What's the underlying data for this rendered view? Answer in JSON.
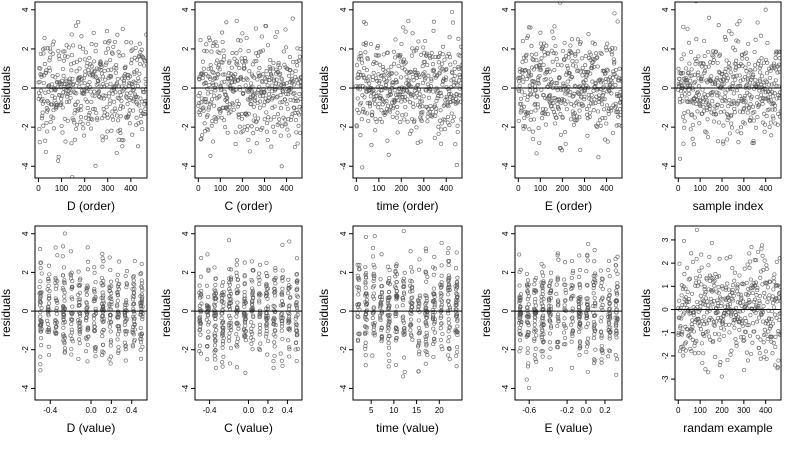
{
  "figure": {
    "colors": {
      "point": "#555555",
      "zero_line": "#000000",
      "frame": "#000000",
      "background": "#ffffff"
    }
  },
  "chart_data": [
    {
      "type": "scatter",
      "xlabel": "D (order)",
      "ylabel": "residuals",
      "xlim": [
        -15,
        470
      ],
      "ylim": [
        -4.6,
        4.4
      ],
      "xticks": [
        0,
        100,
        200,
        300,
        400
      ],
      "xtick_labels": [
        "0",
        "100",
        "200",
        "300",
        "400"
      ],
      "yticks": [
        -4,
        -2,
        0,
        2,
        4
      ],
      "ytick_labels": [
        "-4",
        "-2",
        "0",
        "2",
        "4"
      ],
      "reference_line_y": 0,
      "point_style": "open-circle",
      "n_points": 470,
      "x_kind": "index"
    },
    {
      "type": "scatter",
      "xlabel": "C (order)",
      "ylabel": "residuals",
      "xlim": [
        -15,
        470
      ],
      "ylim": [
        -4.6,
        4.4
      ],
      "xticks": [
        0,
        100,
        200,
        300,
        400
      ],
      "xtick_labels": [
        "0",
        "100",
        "200",
        "300",
        "400"
      ],
      "yticks": [
        -4,
        -2,
        0,
        2,
        4
      ],
      "ytick_labels": [
        "-4",
        "-2",
        "0",
        "2",
        "4"
      ],
      "reference_line_y": 0,
      "point_style": "open-circle",
      "n_points": 470,
      "x_kind": "index"
    },
    {
      "type": "scatter",
      "xlabel": "time (order)",
      "ylabel": "residuals",
      "xlim": [
        -15,
        470
      ],
      "ylim": [
        -4.6,
        4.4
      ],
      "xticks": [
        0,
        100,
        200,
        300,
        400
      ],
      "xtick_labels": [
        "0",
        "100",
        "200",
        "300",
        "400"
      ],
      "yticks": [
        -4,
        -2,
        0,
        2,
        4
      ],
      "ytick_labels": [
        "-4",
        "-2",
        "0",
        "2",
        "4"
      ],
      "reference_line_y": 0,
      "point_style": "open-circle",
      "n_points": 470,
      "x_kind": "index"
    },
    {
      "type": "scatter",
      "xlabel": "E (order)",
      "ylabel": "residuals",
      "xlim": [
        -15,
        470
      ],
      "ylim": [
        -4.6,
        4.4
      ],
      "xticks": [
        0,
        100,
        200,
        300,
        400
      ],
      "xtick_labels": [
        "0",
        "100",
        "200",
        "300",
        "400"
      ],
      "yticks": [
        -4,
        -2,
        0,
        2,
        4
      ],
      "ytick_labels": [
        "-4",
        "-2",
        "0",
        "2",
        "4"
      ],
      "reference_line_y": 0,
      "point_style": "open-circle",
      "n_points": 470,
      "x_kind": "index"
    },
    {
      "type": "scatter",
      "xlabel": "sample index",
      "ylabel": "residuals",
      "xlim": [
        -15,
        470
      ],
      "ylim": [
        -4.6,
        4.4
      ],
      "xticks": [
        0,
        100,
        200,
        300,
        400
      ],
      "xtick_labels": [
        "0",
        "100",
        "200",
        "300",
        "400"
      ],
      "yticks": [
        -4,
        -2,
        0,
        2,
        4
      ],
      "ytick_labels": [
        "-4",
        "-2",
        "0",
        "2",
        "4"
      ],
      "reference_line_y": 0,
      "point_style": "open-circle",
      "n_points": 470,
      "x_kind": "index"
    },
    {
      "type": "scatter",
      "xlabel": "D (value)",
      "ylabel": "residuals",
      "xlim": [
        -0.55,
        0.55
      ],
      "ylim": [
        -4.6,
        4.4
      ],
      "xticks": [
        -0.4,
        0,
        0.2,
        0.4
      ],
      "xtick_labels": [
        "-0.4",
        "0.0",
        "0.2",
        "0.4"
      ],
      "yticks": [
        -4,
        -2,
        0,
        2,
        4
      ],
      "ytick_labels": [
        "-4",
        "-2",
        "0",
        "2",
        "4"
      ],
      "reference_line_y": 0,
      "point_style": "open-circle",
      "n_points": 470,
      "x_kind": "value"
    },
    {
      "type": "scatter",
      "xlabel": "C (value)",
      "ylabel": "residuals",
      "xlim": [
        -0.55,
        0.55
      ],
      "ylim": [
        -4.6,
        4.4
      ],
      "xticks": [
        -0.4,
        0,
        0.2,
        0.4
      ],
      "xtick_labels": [
        "-0.4",
        "0.0",
        "0.2",
        "0.4"
      ],
      "yticks": [
        -4,
        -2,
        0,
        2,
        4
      ],
      "ytick_labels": [
        "-4",
        "-2",
        "0",
        "2",
        "4"
      ],
      "reference_line_y": 0,
      "point_style": "open-circle",
      "n_points": 470,
      "x_kind": "value"
    },
    {
      "type": "scatter",
      "xlabel": "time (value)",
      "ylabel": "residuals",
      "xlim": [
        1,
        25
      ],
      "ylim": [
        -4.6,
        4.4
      ],
      "xticks": [
        5,
        10,
        15,
        20
      ],
      "xtick_labels": [
        "5",
        "10",
        "15",
        "20"
      ],
      "yticks": [
        -4,
        -2,
        0,
        2,
        4
      ],
      "ytick_labels": [
        "-4",
        "-2",
        "0",
        "2",
        "4"
      ],
      "reference_line_y": 0,
      "point_style": "open-circle",
      "n_points": 470,
      "x_kind": "value"
    },
    {
      "type": "scatter",
      "xlabel": "E (value)",
      "ylabel": "residuals",
      "xlim": [
        -0.75,
        0.38
      ],
      "ylim": [
        -4.6,
        4.4
      ],
      "xticks": [
        -0.6,
        -0.2,
        0,
        0.2
      ],
      "xtick_labels": [
        "-0.6",
        "-0.2",
        "0.0",
        "0.2"
      ],
      "yticks": [
        -4,
        -2,
        0,
        2,
        4
      ],
      "ytick_labels": [
        "-4",
        "-2",
        "0",
        "2",
        "4"
      ],
      "reference_line_y": 0,
      "point_style": "open-circle",
      "n_points": 470,
      "x_kind": "value"
    },
    {
      "type": "scatter",
      "xlabel": "randam example",
      "ylabel": "residuals",
      "xlim": [
        -15,
        470
      ],
      "ylim": [
        -3.9,
        3.6
      ],
      "xticks": [
        0,
        100,
        200,
        300,
        400
      ],
      "xtick_labels": [
        "0",
        "100",
        "200",
        "300",
        "400"
      ],
      "yticks": [
        -3,
        -2,
        -1,
        0,
        1,
        2,
        3
      ],
      "ytick_labels": [
        "-3",
        "-2",
        "-1",
        "0",
        "1",
        "2",
        "3"
      ],
      "reference_line_y": 0,
      "point_style": "open-circle",
      "n_points": 470,
      "x_kind": "index"
    }
  ]
}
